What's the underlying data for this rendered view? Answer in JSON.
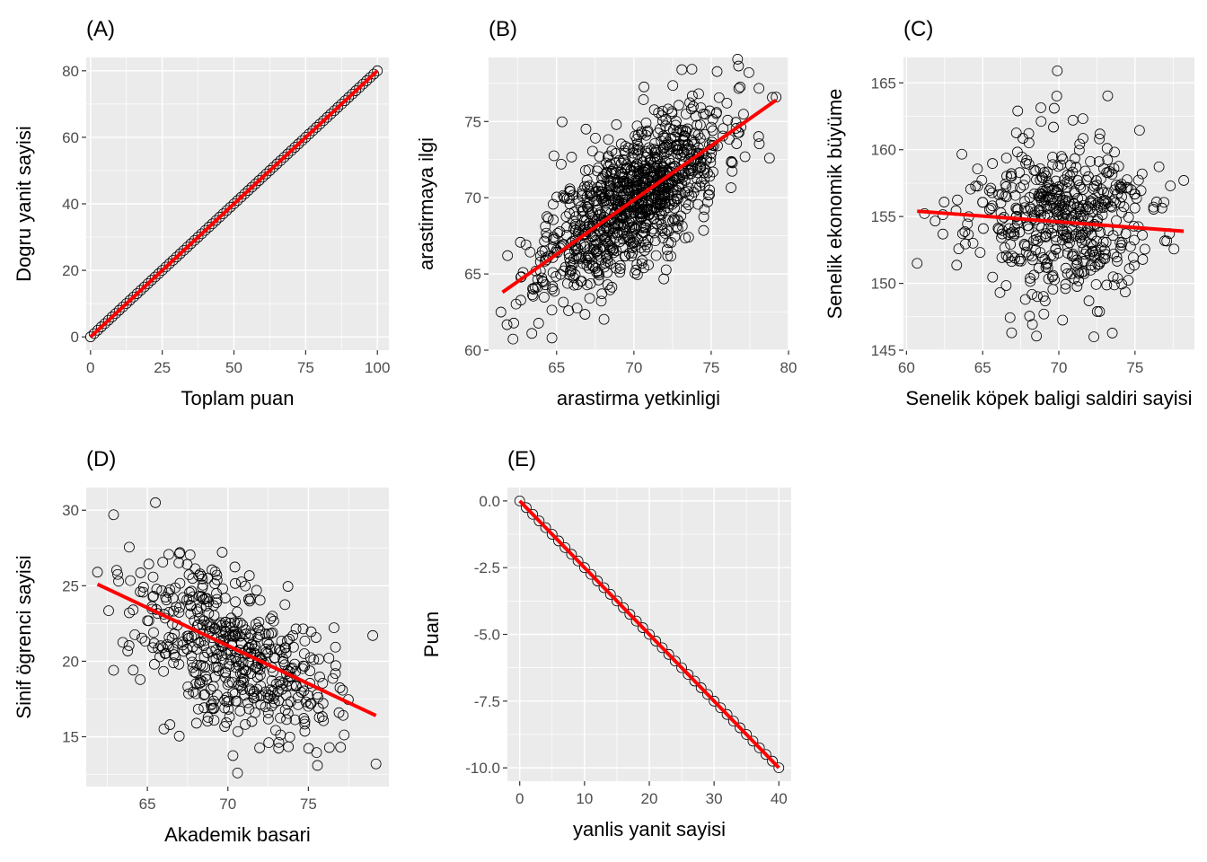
{
  "chart_data": [
    {
      "id": "A",
      "type": "scatter",
      "title": "(A)",
      "xlabel": "Toplam puan",
      "ylabel": "Dogru yanit sayisi",
      "xlim": [
        -1.5,
        104
      ],
      "ylim": [
        -4,
        84
      ],
      "xticks": [
        0,
        25,
        50,
        75,
        100
      ],
      "xtick_labels": [
        "0",
        "25",
        "50",
        "75",
        "100"
      ],
      "yticks": [
        0,
        20,
        40,
        60,
        80
      ],
      "ytick_labels": [
        "0",
        "20",
        "40",
        "60",
        "80"
      ],
      "grid": true,
      "points": {
        "kind": "line",
        "x_from": 0,
        "x_to": 100,
        "count": 81,
        "slope": 0.8,
        "intercept": 0
      },
      "fit_line": {
        "x": [
          0,
          100
        ],
        "y": [
          0,
          80
        ],
        "color": "#FF0000"
      }
    },
    {
      "id": "B",
      "type": "scatter",
      "title": "(B)",
      "xlabel": "arastirma yetkinligi",
      "ylabel": "arastirmaya ilgi",
      "xlim": [
        60.6,
        80
      ],
      "ylim": [
        60,
        79.2
      ],
      "xticks": [
        65,
        70,
        75,
        80
      ],
      "xtick_labels": [
        "65",
        "70",
        "75",
        "80"
      ],
      "yticks": [
        60,
        65,
        70,
        75
      ],
      "ytick_labels": [
        "60",
        "65",
        "70",
        "75"
      ],
      "grid": true,
      "points": {
        "kind": "cloud",
        "n": 1000,
        "x_mean": 70,
        "x_sd": 2.9,
        "y_mean": 70,
        "y_sd": 3.0,
        "r": 0.68,
        "seed": 11,
        "notable": [
          [
            61.4,
            62.5
          ],
          [
            64.7,
            60.8
          ],
          [
            63.4,
            61.1
          ],
          [
            73.1,
            78.4
          ],
          [
            79.2,
            76.6
          ],
          [
            66.9,
            74.5
          ],
          [
            65.3,
            72.2
          ]
        ]
      },
      "fit_line": {
        "x": [
          61.5,
          79.2
        ],
        "y": [
          63.8,
          76.4
        ],
        "color": "#FF0000"
      }
    },
    {
      "id": "C",
      "type": "scatter",
      "title": "(C)",
      "xlabel": "Senelik köpek baligi saldiri sayisi",
      "ylabel": "Senelik ekonomik büyüme",
      "xlim": [
        59.8,
        78.9
      ],
      "ylim": [
        145,
        166.9
      ],
      "xticks": [
        60,
        65,
        70,
        75
      ],
      "xtick_labels": [
        "60",
        "65",
        "70",
        "75"
      ],
      "yticks": [
        145,
        150,
        155,
        160,
        165
      ],
      "ytick_labels": [
        "145",
        "150",
        "155",
        "160",
        "165"
      ],
      "grid": true,
      "points": {
        "kind": "cloud",
        "n": 500,
        "x_mean": 70,
        "x_sd": 3.0,
        "y_mean": 154.8,
        "y_sd": 3.0,
        "r": -0.08,
        "seed": 23,
        "notable": [
          [
            60.7,
            151.5
          ],
          [
            69.9,
            165.9
          ],
          [
            69.7,
            163.1
          ],
          [
            67.3,
            162.9
          ],
          [
            72.3,
            146.0
          ],
          [
            66.9,
            146.3
          ],
          [
            78.2,
            157.7
          ]
        ]
      },
      "fit_line": {
        "x": [
          60.7,
          78.2
        ],
        "y": [
          155.4,
          153.9
        ],
        "color": "#FF0000"
      }
    },
    {
      "id": "D",
      "type": "scatter",
      "title": "(D)",
      "xlabel": "Akademik basari",
      "ylabel": "Sinif ögrenci sayisi",
      "xlim": [
        61.2,
        80.0
      ],
      "ylim": [
        11.7,
        31.5
      ],
      "xticks": [
        65,
        70,
        75
      ],
      "xtick_labels": [
        "65",
        "70",
        "75"
      ],
      "yticks": [
        15,
        20,
        25,
        30
      ],
      "ytick_labels": [
        "15",
        "20",
        "25",
        "30"
      ],
      "grid": true,
      "points": {
        "kind": "cloud",
        "n": 500,
        "x_mean": 70.3,
        "x_sd": 3.0,
        "y_mean": 20.8,
        "y_sd": 2.9,
        "r": -0.5,
        "seed": 37,
        "notable": [
          [
            65.5,
            30.5
          ],
          [
            62.9,
            29.7
          ],
          [
            61.9,
            25.9
          ],
          [
            62.9,
            19.4
          ],
          [
            70.6,
            12.6
          ],
          [
            79.2,
            13.2
          ],
          [
            79.0,
            21.7
          ],
          [
            66.4,
            15.8
          ]
        ]
      },
      "fit_line": {
        "x": [
          61.9,
          79.2
        ],
        "y": [
          25.1,
          16.4
        ],
        "color": "#FF0000"
      }
    },
    {
      "id": "E",
      "type": "scatter",
      "title": "(E)",
      "xlabel": "yanlis yanit sayisi",
      "ylabel": "Puan",
      "xlim": [
        -1.9,
        41.9
      ],
      "ylim": [
        -10.5,
        0.5
      ],
      "xticks": [
        0,
        10,
        20,
        30,
        40
      ],
      "xtick_labels": [
        "0",
        "10",
        "20",
        "30",
        "40"
      ],
      "yticks": [
        0,
        -2.5,
        -5,
        -7.5,
        -10
      ],
      "ytick_labels": [
        "0.0",
        "-2.5",
        "-5.0",
        "-7.5",
        "-10.0"
      ],
      "grid": true,
      "points": {
        "kind": "line",
        "x_from": 0,
        "x_to": 40,
        "count": 41,
        "slope": -0.25,
        "intercept": 0
      },
      "fit_line": {
        "x": [
          0,
          40
        ],
        "y": [
          0,
          -10
        ],
        "color": "#FF0000"
      }
    }
  ]
}
